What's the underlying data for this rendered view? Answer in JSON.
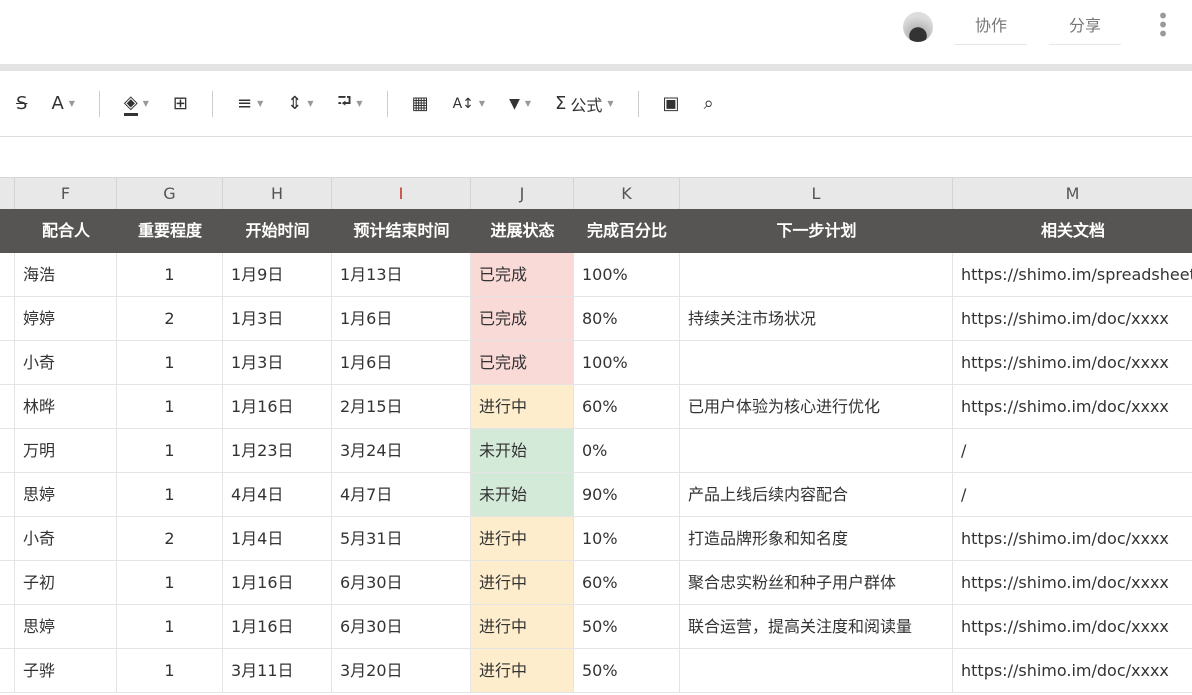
{
  "topbar": {
    "collab": "协作",
    "share": "分享",
    "more": "⋮"
  },
  "toolbar": {
    "strike": "S",
    "font": "A",
    "fill": "◈",
    "merge": "⊞",
    "align": "≡",
    "valign": "⇕",
    "wrap": "⮒",
    "freeze": "▦",
    "sort": "A↕",
    "filter": "▼",
    "sigma": "Σ",
    "formula": "公式",
    "image": "▣",
    "find": "⌕"
  },
  "columns": [
    "F",
    "G",
    "H",
    "I",
    "J",
    "K",
    "L",
    "M"
  ],
  "headers": [
    "配合人",
    "重要程度",
    "开始时间",
    "预计结束时间",
    "进展状态",
    "完成百分比",
    "下一步计划",
    "相关文档"
  ],
  "status_colors": {
    "已完成": "#f9dad7",
    "进行中": "#fdedcd",
    "未开始": "#d4ead8"
  },
  "rows": [
    [
      "海浩",
      "1",
      "1月9日",
      "1月13日",
      "已完成",
      "100%",
      "",
      "https://shimo.im/spreadsheet"
    ],
    [
      "婷婷",
      "2",
      "1月3日",
      "1月6日",
      "已完成",
      "80%",
      "持续关注市场状况",
      "https://shimo.im/doc/xxxx"
    ],
    [
      "小奇",
      "1",
      "1月3日",
      "1月6日",
      "已完成",
      "100%",
      "",
      "https://shimo.im/doc/xxxx"
    ],
    [
      "林晔",
      "1",
      "1月16日",
      "2月15日",
      "进行中",
      "60%",
      "已用户体验为核心进行优化",
      "https://shimo.im/doc/xxxx"
    ],
    [
      "万明",
      "1",
      "1月23日",
      "3月24日",
      "未开始",
      "0%",
      "",
      " /"
    ],
    [
      "思婷",
      "1",
      "4月4日",
      "4月7日",
      "未开始",
      "90%",
      "产品上线后续内容配合",
      " /"
    ],
    [
      "小奇",
      "2",
      "1月4日",
      "5月31日",
      "进行中",
      "10%",
      "打造品牌形象和知名度",
      "https://shimo.im/doc/xxxx"
    ],
    [
      "子初",
      "1",
      "1月16日",
      "6月30日",
      "进行中",
      "60%",
      "聚合忠实粉丝和种子用户群体",
      "https://shimo.im/doc/xxxx"
    ],
    [
      "思婷",
      "1",
      "1月16日",
      "6月30日",
      "进行中",
      "50%",
      "联合运营，提高关注度和阅读量",
      "https://shimo.im/doc/xxxx"
    ],
    [
      "子骅",
      "1",
      "3月11日",
      "3月20日",
      "进行中",
      "50%",
      "",
      "https://shimo.im/doc/xxxx"
    ]
  ]
}
